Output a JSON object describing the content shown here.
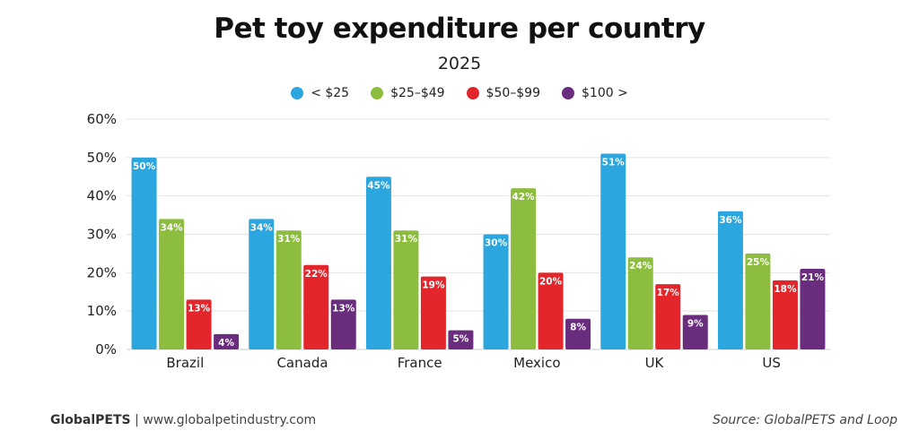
{
  "chart_data": {
    "type": "bar",
    "title": "Pet toy expenditure per country",
    "subtitle": "2025",
    "categories": [
      "Brazil",
      "Canada",
      "France",
      "Mexico",
      "UK",
      "US"
    ],
    "series": [
      {
        "name": "< $25",
        "color": "#2ba6de",
        "values": [
          50,
          34,
          45,
          30,
          51,
          36
        ]
      },
      {
        "name": "$25–$49",
        "color": "#8cbd3f",
        "values": [
          34,
          31,
          31,
          42,
          24,
          25
        ]
      },
      {
        "name": "$50–$99",
        "color": "#e2262b",
        "values": [
          13,
          22,
          19,
          20,
          17,
          18
        ]
      },
      {
        "name": "$100 >",
        "color": "#6a2d7d",
        "values": [
          4,
          13,
          5,
          8,
          9,
          21
        ]
      }
    ],
    "ylim": [
      0,
      60
    ],
    "yticks": [
      "0%",
      "10%",
      "20%",
      "30%",
      "40%",
      "50%",
      "60%"
    ],
    "value_suffix": "%",
    "grid": true,
    "legend_position": "top"
  },
  "footer": {
    "brand": "GlobalPETS",
    "separator": "|",
    "website": "www.globalpetindustry.com",
    "source": "Source: GlobalPETS and Loop"
  }
}
